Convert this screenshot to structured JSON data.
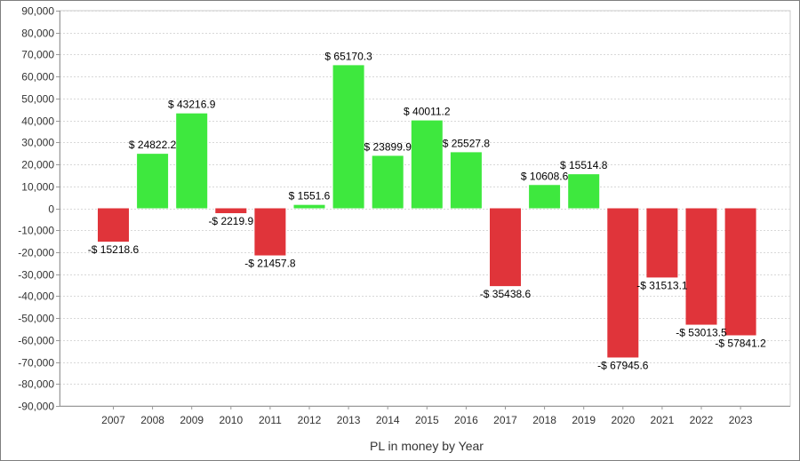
{
  "chart_data": {
    "type": "bar",
    "title": "",
    "xlabel": "PL in money by Year",
    "ylabel": "",
    "ylim": [
      -90000,
      90000
    ],
    "y_ticks": [
      "90,000",
      "80,000",
      "70,000",
      "60,000",
      "50,000",
      "40,000",
      "30,000",
      "20,000",
      "10,000",
      "0",
      "-10,000",
      "-20,000",
      "-30,000",
      "-40,000",
      "-50,000",
      "-60,000",
      "-70,000",
      "-80,000",
      "-90,000"
    ],
    "y_tick_values": [
      90000,
      80000,
      70000,
      60000,
      50000,
      40000,
      30000,
      20000,
      10000,
      0,
      -10000,
      -20000,
      -30000,
      -40000,
      -50000,
      -60000,
      -70000,
      -80000,
      -90000
    ],
    "grid": true,
    "legend": "none",
    "categories": [
      "2007",
      "2008",
      "2009",
      "2010",
      "2011",
      "2012",
      "2013",
      "2014",
      "2015",
      "2016",
      "2017",
      "2018",
      "2019",
      "2020",
      "2021",
      "2022",
      "2023"
    ],
    "values": [
      -15218.6,
      24822.2,
      43216.9,
      -2219.9,
      -21457.8,
      1551.6,
      65170.3,
      23899.9,
      40011.2,
      25527.8,
      -35438.6,
      10608.6,
      15514.8,
      -67945.6,
      -31513.1,
      -53013.5,
      -57841.2
    ],
    "value_labels": [
      "-$ 15218.6",
      "$ 24822.2",
      "$ 43216.9",
      "-$ 2219.9",
      "-$ 21457.8",
      "$ 1551.6",
      "$ 65170.3",
      "$ 23899.9",
      "$ 40011.2",
      "$ 25527.8",
      "-$ 35438.6",
      "$ 10608.6",
      "$ 15514.8",
      "-$ 67945.6",
      "-$ 31513.1",
      "-$ 53013.5",
      "-$ 57841.2"
    ],
    "colors": {
      "positive": "#3ee83e",
      "negative": "#e0343a",
      "grid": "#d8d8d8",
      "axis": "#999999"
    }
  }
}
